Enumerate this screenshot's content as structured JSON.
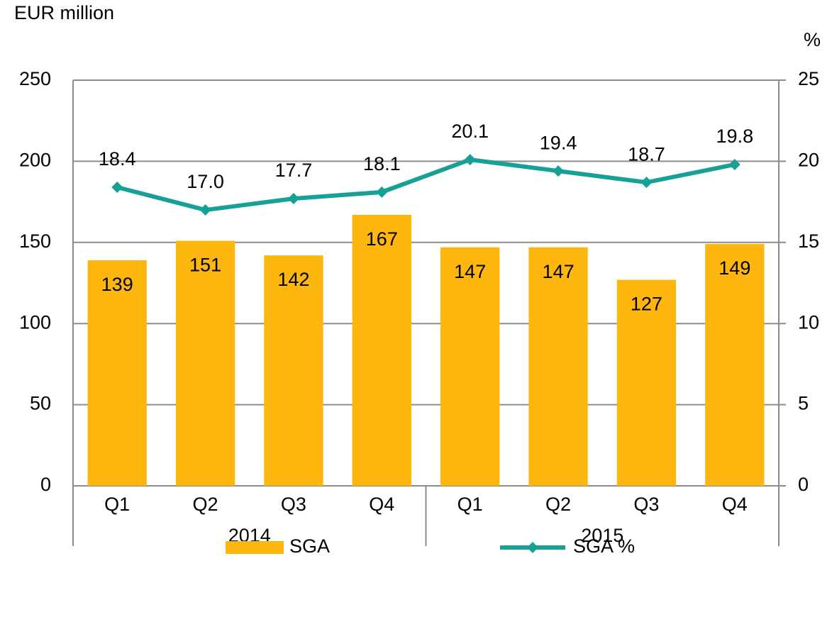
{
  "chart_data": {
    "type": "bar_line",
    "y_label": "EUR million",
    "y2_label": "%",
    "categories": [
      "Q1",
      "Q2",
      "Q3",
      "Q4",
      "Q1",
      "Q2",
      "Q3",
      "Q4"
    ],
    "groups": [
      "2014",
      "2015"
    ],
    "series": [
      {
        "name": "SGA",
        "type": "bar",
        "color": "#fdb60d",
        "values": [
          139,
          151,
          142,
          167,
          147,
          147,
          127,
          149
        ]
      },
      {
        "name": "SGA %",
        "type": "line",
        "axis": "y2",
        "color": "#17a096",
        "values": [
          18.4,
          17.0,
          17.7,
          18.1,
          20.1,
          19.4,
          18.7,
          19.8
        ],
        "value_labels": [
          "18.4",
          "17.0",
          "17.7",
          "18.1",
          "20.1",
          "19.4",
          "18.7",
          "19.8"
        ]
      }
    ],
    "ylim": [
      0,
      250
    ],
    "yticks": [
      0,
      50,
      100,
      150,
      200,
      250
    ],
    "y2lim": [
      0,
      25
    ],
    "y2ticks": [
      0,
      5,
      10,
      15,
      20,
      25
    ],
    "grid": true,
    "legend": "bottom"
  }
}
